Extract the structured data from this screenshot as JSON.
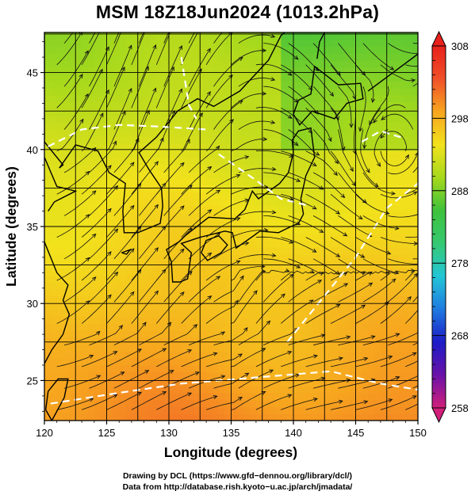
{
  "chart_data": {
    "type": "heatmap",
    "title": "MSM 18Z18Jun2024 (1013.2hPa)",
    "xlabel": "Longitude (degrees)",
    "ylabel": "Latitude  (degrees)",
    "xlim": [
      120,
      150
    ],
    "ylim": [
      22.4,
      47.6
    ],
    "x_ticks": [
      120,
      125,
      130,
      135,
      140,
      145,
      150
    ],
    "y_ticks": [
      25,
      30,
      35,
      40,
      45
    ],
    "grid": true,
    "colorbar": {
      "range": [
        258,
        308
      ],
      "ticks": [
        308,
        298,
        288,
        278,
        268,
        258
      ],
      "colors": [
        "#d11f7a",
        "#6a11a9",
        "#1c1cc7",
        "#1f7be0",
        "#23c6d6",
        "#36c871",
        "#3ec23c",
        "#a6d91c",
        "#f2e21c",
        "#f7a51f",
        "#f0502a",
        "#e8211c"
      ]
    },
    "overlays": [
      "streamlines",
      "white dashed contours",
      "coastlines"
    ]
  },
  "credits": {
    "line1": "Drawing by DCL (https://www.gfd−dennou.org/library/dcl/)",
    "line2": "Data from http://database.rish.kyoto−u.ac.jp/arch/jmadata/"
  }
}
